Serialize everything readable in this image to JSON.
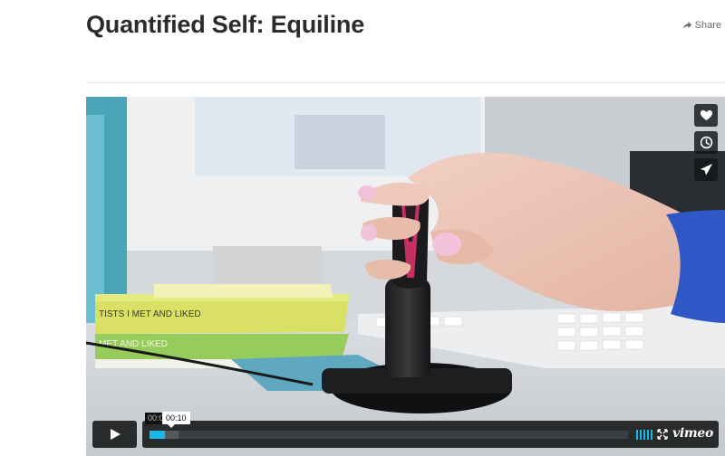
{
  "page": {
    "title": "Quantified Self: Equiline",
    "share_label": "Share"
  },
  "video": {
    "scene_text": {
      "book_top": "TISTS I MET AND LIKED",
      "book_bottom": "MET AND LIKED"
    },
    "side_buttons": [
      {
        "name": "like",
        "icon": "heart-icon"
      },
      {
        "name": "watch-later",
        "icon": "clock-icon"
      },
      {
        "name": "share",
        "icon": "paper-plane-icon"
      }
    ],
    "controls": {
      "time_played": "00:0",
      "time_hover": "00:10",
      "progress_fraction": 0.033,
      "loaded_fraction": 0.06,
      "volume_bars": 5,
      "logo": "vimeo"
    },
    "colors": {
      "accent": "#1ab7ea",
      "control_bg": "#121416"
    }
  }
}
